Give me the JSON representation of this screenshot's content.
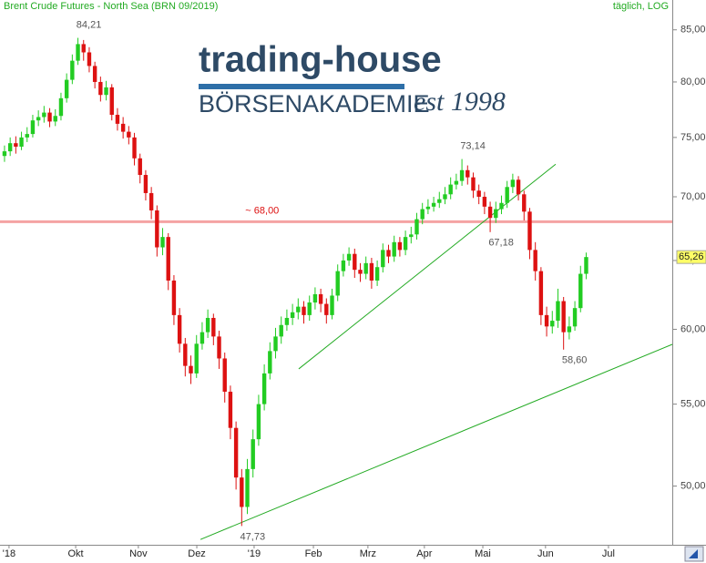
{
  "chart_data": {
    "type": "candlestick",
    "title": "Brent Crude Futures - North Sea (BRN 09/2019)",
    "subtitle": "täglich, LOG",
    "log_scale": true,
    "up_color": "#22cc22",
    "down_color": "#dd1111",
    "xlim": [
      -1.6,
      236.5
    ],
    "ylim": [
      46.7,
      88.0
    ],
    "yticks": [
      {
        "value": 50,
        "label": "50,00"
      },
      {
        "value": 55,
        "label": "55,00"
      },
      {
        "value": 60,
        "label": "60,00"
      },
      {
        "value": 65,
        "label": "65,00"
      },
      {
        "value": 70,
        "label": "70,00"
      },
      {
        "value": 75,
        "label": "75,00"
      },
      {
        "value": 80,
        "label": "80,00"
      },
      {
        "value": 85,
        "label": "85,00"
      }
    ],
    "xticks": [
      {
        "value": 1.6,
        "label": "'18"
      },
      {
        "value": 25.2,
        "label": "Okt"
      },
      {
        "value": 47.4,
        "label": "Nov"
      },
      {
        "value": 68.1,
        "label": "Dez"
      },
      {
        "value": 88.4,
        "label": "'19"
      },
      {
        "value": 109.4,
        "label": "Feb"
      },
      {
        "value": 128.7,
        "label": "Mrz"
      },
      {
        "value": 148.7,
        "label": "Apr"
      },
      {
        "value": 169.4,
        "label": "Mai"
      },
      {
        "value": 191.6,
        "label": "Jun"
      },
      {
        "value": 213.9,
        "label": "Jul"
      }
    ],
    "x": [
      0,
      2,
      4,
      6,
      8,
      10,
      12,
      14,
      16,
      18,
      20,
      22,
      24,
      26,
      28,
      30,
      32,
      34,
      36,
      38,
      40,
      42,
      44,
      46,
      48,
      50,
      52,
      54,
      56,
      58,
      60,
      62,
      64,
      66,
      68,
      70,
      72,
      74,
      76,
      78,
      80,
      82,
      84,
      86,
      88,
      90,
      92,
      94,
      96,
      98,
      100,
      102,
      104,
      106,
      108,
      110,
      112,
      114,
      116,
      118,
      120,
      122,
      124,
      126,
      128,
      130,
      132,
      134,
      136,
      138,
      140,
      142,
      144,
      146,
      148,
      150,
      152,
      154,
      156,
      158,
      160,
      162,
      164,
      166,
      168,
      170,
      172,
      174,
      176,
      178,
      180,
      182,
      184,
      186,
      188,
      190,
      192,
      194,
      196,
      198,
      200,
      202,
      204,
      206
    ],
    "open": [
      73.4,
      73.8,
      74.5,
      74.2,
      75.0,
      75.3,
      76.5,
      76.8,
      77.2,
      76.4,
      76.9,
      78.5,
      80.2,
      82.0,
      83.6,
      82.8,
      81.5,
      80.0,
      78.8,
      79.5,
      77.0,
      76.2,
      75.5,
      75.0,
      73.2,
      71.8,
      70.3,
      68.9,
      66.0,
      66.8,
      63.5,
      61.0,
      59.0,
      57.5,
      57.0,
      59.0,
      59.8,
      60.8,
      59.5,
      58.0,
      55.8,
      53.5,
      50.5,
      48.8,
      51.0,
      52.8,
      55.0,
      57.0,
      58.5,
      59.5,
      60.3,
      60.8,
      61.2,
      61.6,
      61.0,
      61.9,
      62.5,
      61.8,
      61.0,
      62.4,
      64.2,
      65.0,
      65.5,
      64.3,
      64.0,
      64.8,
      63.5,
      64.5,
      65.8,
      65.3,
      66.4,
      65.8,
      66.8,
      67.0,
      68.2,
      69.0,
      69.2,
      69.5,
      69.8,
      70.2,
      71.0,
      71.3,
      72.2,
      71.6,
      70.5,
      70.0,
      69.2,
      68.3,
      69.0,
      69.5,
      70.8,
      71.4,
      70.2,
      68.8,
      65.8,
      64.2,
      61.0,
      60.2,
      60.6,
      62.0,
      59.8,
      60.2,
      61.5,
      64.0
    ],
    "high": [
      74.3,
      75.0,
      75.1,
      75.5,
      75.9,
      77.0,
      77.4,
      77.8,
      77.6,
      77.5,
      79.0,
      80.8,
      82.6,
      84.21,
      84.0,
      83.3,
      81.9,
      80.5,
      80.1,
      79.8,
      77.6,
      76.8,
      76.0,
      75.4,
      73.6,
      72.2,
      70.8,
      69.3,
      67.5,
      67.1,
      63.9,
      61.5,
      59.4,
      58.2,
      59.6,
      60.5,
      61.4,
      61.1,
      59.9,
      58.4,
      56.2,
      53.9,
      51.0,
      51.6,
      53.4,
      55.6,
      57.6,
      59.1,
      60.1,
      60.9,
      61.4,
      61.8,
      62.2,
      62.0,
      62.4,
      63.0,
      62.9,
      62.2,
      62.9,
      64.7,
      65.5,
      66.0,
      65.9,
      64.8,
      65.3,
      65.2,
      65.0,
      66.3,
      66.2,
      66.9,
      66.8,
      67.3,
      67.6,
      68.7,
      69.5,
      69.8,
      70.0,
      70.4,
      70.8,
      71.6,
      71.9,
      73.14,
      72.6,
      72.0,
      71.0,
      70.4,
      69.6,
      69.6,
      70.1,
      71.3,
      71.9,
      71.7,
      70.5,
      69.1,
      66.4,
      64.5,
      61.6,
      61.3,
      62.9,
      62.3,
      60.9,
      62.0,
      64.6,
      65.6
    ],
    "low": [
      72.9,
      73.4,
      73.6,
      73.9,
      74.6,
      75.0,
      76.0,
      76.3,
      75.9,
      76.0,
      76.5,
      78.1,
      79.8,
      81.6,
      82.0,
      80.9,
      79.4,
      78.2,
      78.3,
      76.5,
      75.6,
      74.9,
      74.4,
      72.6,
      71.1,
      69.7,
      68.2,
      65.3,
      65.4,
      62.8,
      60.3,
      58.4,
      56.8,
      56.3,
      56.7,
      58.6,
      59.4,
      58.9,
      57.3,
      55.1,
      52.8,
      49.8,
      47.73,
      48.4,
      50.5,
      52.4,
      54.6,
      56.6,
      58.0,
      59.0,
      59.9,
      60.3,
      60.7,
      60.4,
      60.6,
      61.4,
      61.2,
      60.4,
      60.7,
      62.0,
      63.8,
      64.6,
      63.7,
      63.4,
      63.6,
      62.9,
      63.1,
      64.1,
      64.8,
      64.9,
      65.3,
      65.4,
      66.3,
      66.6,
      67.8,
      68.6,
      68.8,
      69.1,
      69.4,
      69.8,
      70.6,
      70.9,
      71.0,
      69.9,
      69.4,
      68.6,
      67.18,
      67.9,
      68.6,
      69.1,
      70.3,
      69.7,
      68.1,
      65.1,
      63.5,
      60.3,
      59.5,
      59.7,
      60.1,
      58.6,
      59.3,
      59.9,
      61.2,
      63.6
    ],
    "close": [
      73.8,
      74.5,
      74.2,
      75.0,
      75.3,
      76.5,
      76.8,
      77.2,
      76.4,
      76.9,
      78.5,
      80.2,
      82.0,
      83.6,
      82.8,
      81.5,
      80.0,
      78.8,
      79.5,
      77.0,
      76.2,
      75.5,
      75.0,
      73.2,
      71.8,
      70.3,
      68.9,
      66.0,
      66.8,
      63.5,
      61.0,
      59.0,
      57.5,
      57.0,
      59.0,
      59.8,
      60.8,
      59.5,
      58.0,
      55.8,
      53.5,
      50.5,
      48.8,
      51.0,
      52.8,
      55.0,
      57.0,
      58.5,
      59.5,
      60.3,
      60.8,
      61.2,
      61.6,
      61.0,
      61.9,
      62.5,
      61.8,
      61.0,
      62.4,
      64.2,
      65.0,
      65.5,
      64.3,
      64.0,
      64.8,
      63.5,
      64.5,
      65.8,
      65.3,
      66.4,
      65.8,
      66.8,
      67.0,
      68.2,
      69.0,
      69.2,
      69.5,
      69.8,
      70.2,
      71.0,
      71.3,
      72.2,
      71.6,
      70.5,
      70.0,
      69.2,
      68.3,
      69.0,
      69.5,
      70.8,
      71.4,
      70.2,
      68.8,
      65.8,
      64.2,
      61.0,
      60.2,
      60.6,
      62.0,
      59.8,
      60.2,
      61.5,
      64.0,
      65.26
    ],
    "last_price": {
      "value": 65.26,
      "label": "65,26"
    },
    "hlines": [
      {
        "value": 68,
        "label": "~ 68,00",
        "color": "#f5a3a3"
      }
    ],
    "trendlines": [
      {
        "x": [
          69.4,
          236.5
        ],
        "y": [
          46.99,
          58.96
        ],
        "color": "#22aa22"
      },
      {
        "x": [
          104.2,
          195.2
        ],
        "y": [
          57.3,
          72.7
        ],
        "color": "#22aa22"
      }
    ],
    "annotations": [
      {
        "x": 26,
        "value": 84.21,
        "label": "84,21",
        "position": "above"
      },
      {
        "x": 162,
        "value": 73.14,
        "label": "73,14",
        "position": "above"
      },
      {
        "x": 172,
        "value": 67.18,
        "label": "67,18",
        "position": "below"
      },
      {
        "x": 198,
        "value": 58.6,
        "label": "58,60",
        "position": "below"
      },
      {
        "x": 84,
        "value": 47.73,
        "label": "47,73",
        "position": "below"
      }
    ],
    "logo": {
      "name": "trading-house",
      "subtitle": "BÖRSENAKADEMIE",
      "est": "est 1998"
    }
  }
}
